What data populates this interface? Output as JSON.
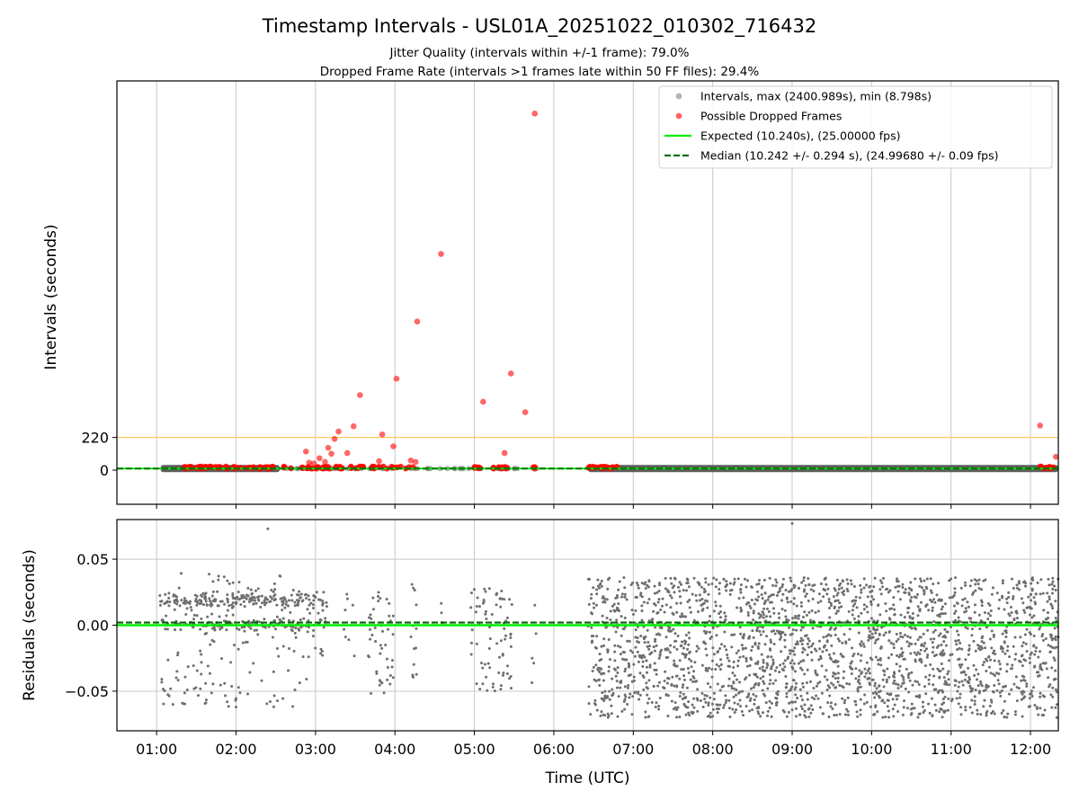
{
  "chart_data": {
    "type": "scatter",
    "title": "Timestamp Intervals - USL01A_20251022_010302_716432",
    "subtitle_lines": [
      "Jitter Quality (intervals within +/-1 frame): 79.0%",
      "Dropped Frame Rate (intervals >1 frames late within 50 FF files): 29.4%"
    ],
    "xlabel": "Time (UTC)",
    "x_ticks": [
      "01:00",
      "02:00",
      "03:00",
      "04:00",
      "05:00",
      "06:00",
      "07:00",
      "08:00",
      "09:00",
      "10:00",
      "11:00",
      "12:00"
    ],
    "xlim_hours": [
      0.5,
      12.35
    ],
    "top": {
      "ylabel": "Intervals (seconds)",
      "ylim": [
        -230,
        2620
      ],
      "y_ticks": [
        0,
        220
      ],
      "threshold_line": 220,
      "expected": 10.24,
      "median": 10.242,
      "legend": [
        "Intervals, max (2400.989s), min (8.798s)",
        "Possible Dropped Frames",
        "Expected (10.240s), (25.00000 fps)",
        "Median (10.242 +/- 0.294 s), (24.99680 +/- 0.09 fps)"
      ],
      "normal_interval_spans_hours": [
        [
          1.05,
          2.55
        ],
        [
          6.43,
          12.35
        ]
      ],
      "dropped_outliers": [
        {
          "t": 2.88,
          "v": 125
        },
        {
          "t": 2.92,
          "v": 50
        },
        {
          "t": 2.98,
          "v": 45
        },
        {
          "t": 3.05,
          "v": 80
        },
        {
          "t": 3.12,
          "v": 55
        },
        {
          "t": 3.16,
          "v": 150
        },
        {
          "t": 3.2,
          "v": 110
        },
        {
          "t": 3.24,
          "v": 210
        },
        {
          "t": 3.29,
          "v": 260
        },
        {
          "t": 3.4,
          "v": 115
        },
        {
          "t": 3.48,
          "v": 295
        },
        {
          "t": 3.56,
          "v": 505
        },
        {
          "t": 3.8,
          "v": 60
        },
        {
          "t": 3.84,
          "v": 240
        },
        {
          "t": 3.98,
          "v": 160
        },
        {
          "t": 4.02,
          "v": 615
        },
        {
          "t": 4.2,
          "v": 65
        },
        {
          "t": 4.26,
          "v": 55
        },
        {
          "t": 4.28,
          "v": 1000
        },
        {
          "t": 4.58,
          "v": 1455
        },
        {
          "t": 5.11,
          "v": 460
        },
        {
          "t": 5.38,
          "v": 115
        },
        {
          "t": 5.46,
          "v": 650
        },
        {
          "t": 5.64,
          "v": 390
        },
        {
          "t": 5.76,
          "v": 2400
        },
        {
          "t": 12.12,
          "v": 300
        },
        {
          "t": 12.32,
          "v": 90
        }
      ],
      "dropped_band_clusters": [
        {
          "start": 1.33,
          "end": 2.48,
          "count": 60
        },
        {
          "start": 2.6,
          "end": 3.45,
          "count": 35
        },
        {
          "start": 3.5,
          "end": 4.3,
          "count": 22
        },
        {
          "start": 4.98,
          "end": 5.1,
          "count": 8
        },
        {
          "start": 5.2,
          "end": 5.45,
          "count": 12
        },
        {
          "start": 5.73,
          "end": 5.78,
          "count": 3
        },
        {
          "start": 6.43,
          "end": 6.8,
          "count": 25
        },
        {
          "start": 12.1,
          "end": 12.35,
          "count": 8
        }
      ]
    },
    "bottom": {
      "ylabel": "Residuals (seconds)",
      "ylim": [
        -0.08,
        0.08
      ],
      "y_ticks": [
        -0.05,
        0.0,
        0.05
      ],
      "y_tick_labels": [
        "−0.05",
        "0.00",
        "0.05"
      ],
      "expected_line": 0.0,
      "median_line": 0.002,
      "residual_clusters": [
        {
          "start": 1.03,
          "end": 2.95,
          "count": 440,
          "min": -0.062,
          "max": 0.075
        },
        {
          "start": 2.95,
          "end": 3.15,
          "count": 35,
          "min": -0.03,
          "max": 0.025
        },
        {
          "start": 3.35,
          "end": 3.5,
          "count": 8,
          "min": -0.035,
          "max": 0.025
        },
        {
          "start": 3.65,
          "end": 4.0,
          "count": 45,
          "min": -0.055,
          "max": 0.025
        },
        {
          "start": 4.2,
          "end": 4.3,
          "count": 14,
          "min": -0.04,
          "max": 0.035
        },
        {
          "start": 4.55,
          "end": 4.6,
          "count": 4,
          "min": -0.015,
          "max": 0.02
        },
        {
          "start": 4.95,
          "end": 5.5,
          "count": 75,
          "min": -0.052,
          "max": 0.03
        },
        {
          "start": 5.72,
          "end": 5.78,
          "count": 5,
          "min": -0.048,
          "max": 0.02
        },
        {
          "start": 6.43,
          "end": 12.35,
          "count": 2300,
          "min": -0.07,
          "max": 0.036
        }
      ],
      "residual_outliers": [
        {
          "t": 9.0,
          "v": 0.077
        },
        {
          "t": 2.4,
          "v": 0.073
        },
        {
          "t": 2.0,
          "v": -0.062
        },
        {
          "t": 8.6,
          "v": -0.069
        }
      ]
    },
    "colors": {
      "normal_points": "#808080",
      "dropped_points": "#ff0000",
      "expected_line": "#00ee00",
      "median_line": "#007000",
      "threshold_line": "#ffc864",
      "grid": "#c8c8c8",
      "residual_points": "#6e6e6e",
      "band": "#555555"
    }
  }
}
